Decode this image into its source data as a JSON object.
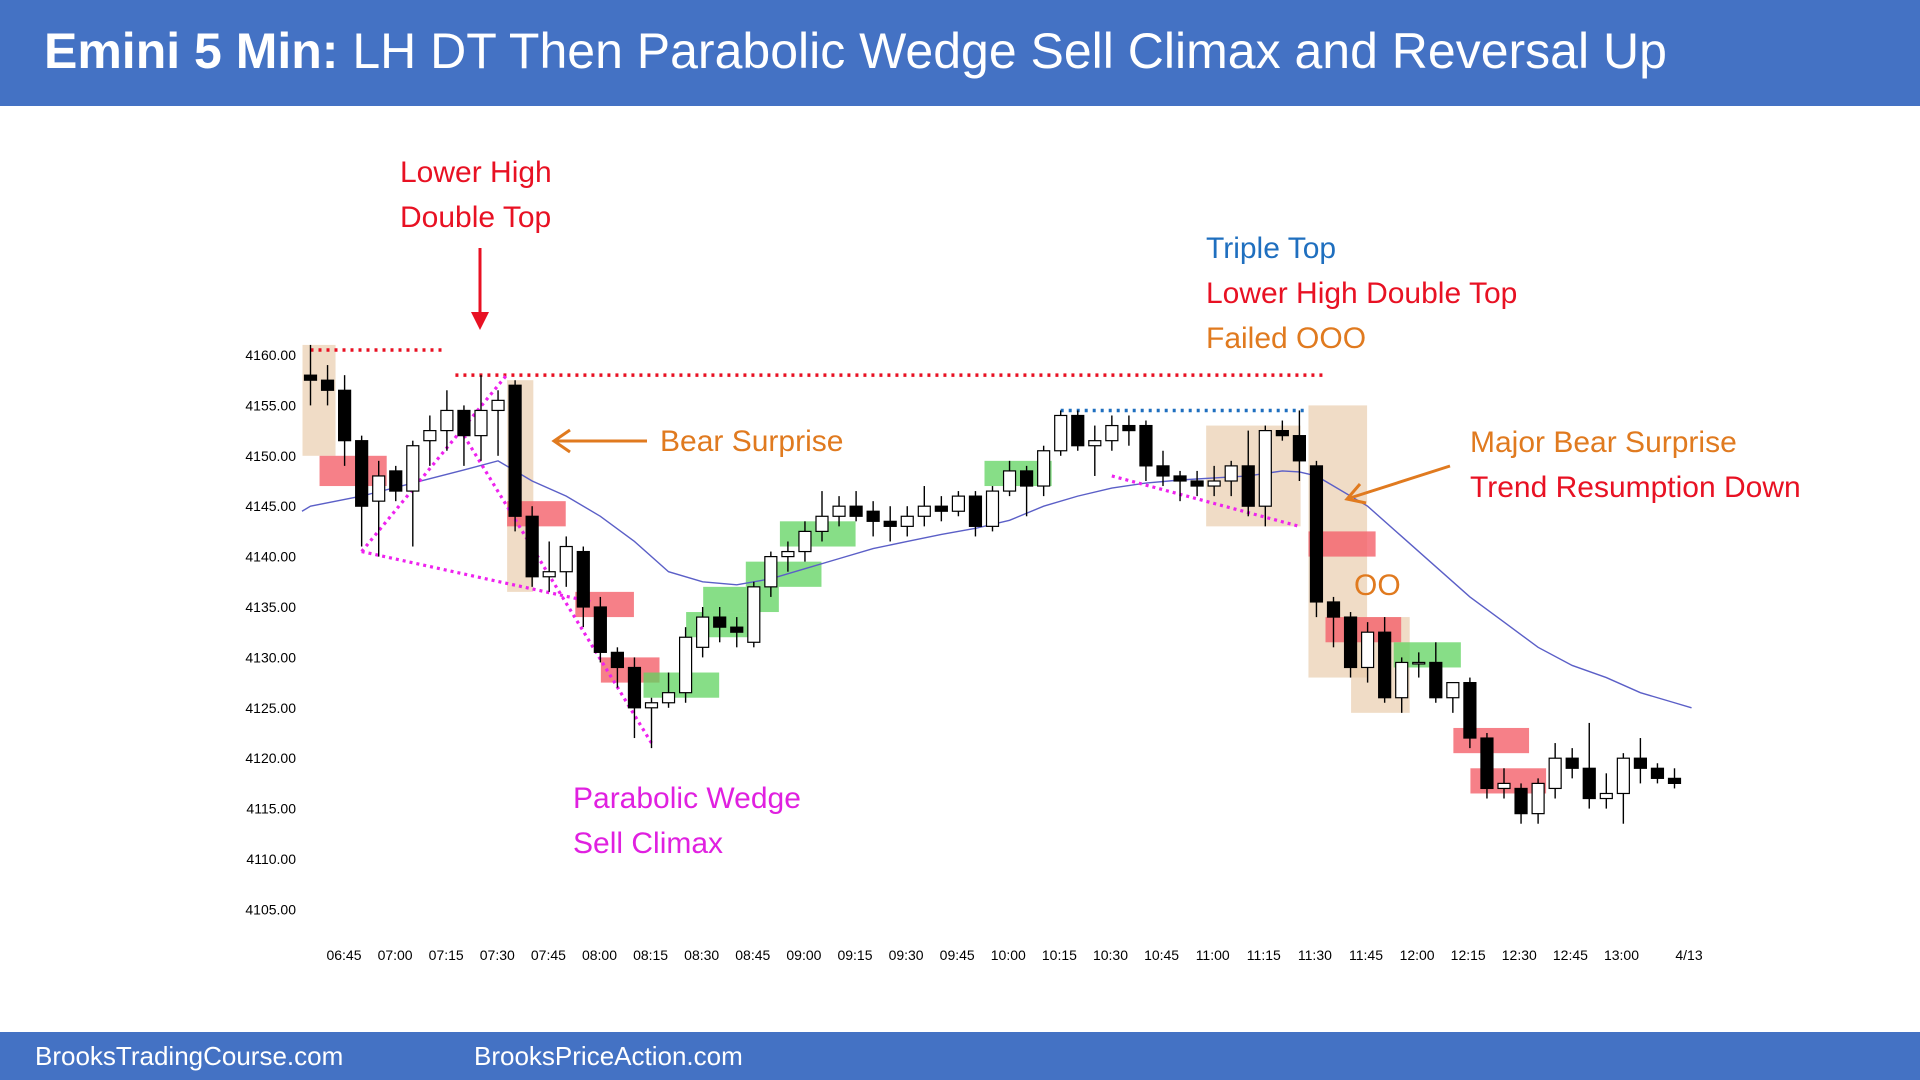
{
  "header": {
    "title_lead": "Emini 5 Min:",
    "title_rest": "LH DT Then Parabolic Wedge Sell Climax and Reversal Up"
  },
  "footer": {
    "left": "BrooksTradingCourse.com",
    "right": "BrooksPriceAction.com"
  },
  "colors": {
    "header_bg": "#4472c4",
    "ema": "#5b5fc7",
    "bull_bar_fill": "#ffffff",
    "bear_bar_fill": "#000000",
    "red_dotted": "#e81123",
    "blue_dotted": "#1f6fbf",
    "magenta": "#ee22ee",
    "orange": "#e07a1f",
    "red_text": "#e81123",
    "blue_text": "#1f6fbf",
    "magenta_text": "#e020e0",
    "highlight_tan": "#e8c9a8",
    "highlight_red": "#f4606a",
    "highlight_green": "#5fd35f"
  },
  "chart_data": {
    "type": "candlestick",
    "title": "Emini 5 Min",
    "ylim": [
      4103,
      4162
    ],
    "y_ticks": [
      "4160.00",
      "4155.00",
      "4150.00",
      "4145.00",
      "4140.00",
      "4135.00",
      "4130.00",
      "4125.00",
      "4120.00",
      "4115.00",
      "4110.00",
      "4105.00"
    ],
    "x_ticks": [
      "06:45",
      "07:00",
      "07:15",
      "07:30",
      "07:45",
      "08:00",
      "08:15",
      "08:30",
      "08:45",
      "09:00",
      "09:15",
      "09:30",
      "09:45",
      "10:00",
      "10:15",
      "10:30",
      "10:45",
      "11:00",
      "11:15",
      "11:30",
      "11:45",
      "12:00",
      "12:15",
      "12:30",
      "12:45",
      "13:00",
      "4/13"
    ],
    "grid": false,
    "bars": [
      {
        "i": 0,
        "o": 4158.0,
        "h": 4161.0,
        "l": 4155.0,
        "c": 4157.5
      },
      {
        "i": 1,
        "o": 4157.5,
        "h": 4159.0,
        "l": 4155.0,
        "c": 4156.5
      },
      {
        "i": 2,
        "o": 4156.5,
        "h": 4158.0,
        "l": 4149.0,
        "c": 4151.5
      },
      {
        "i": 3,
        "o": 4151.5,
        "h": 4152.0,
        "l": 4141.0,
        "c": 4145.0
      },
      {
        "i": 4,
        "o": 4145.5,
        "h": 4149.5,
        "l": 4140.0,
        "c": 4148.0
      },
      {
        "i": 5,
        "o": 4148.5,
        "h": 4149.0,
        "l": 4145.5,
        "c": 4146.5
      },
      {
        "i": 6,
        "o": 4146.5,
        "h": 4151.5,
        "l": 4141.0,
        "c": 4151.0
      },
      {
        "i": 7,
        "o": 4151.5,
        "h": 4154.0,
        "l": 4149.0,
        "c": 4152.5
      },
      {
        "i": 8,
        "o": 4152.5,
        "h": 4156.5,
        "l": 4150.5,
        "c": 4154.5
      },
      {
        "i": 9,
        "o": 4154.5,
        "h": 4155.0,
        "l": 4149.0,
        "c": 4152.0
      },
      {
        "i": 10,
        "o": 4152.0,
        "h": 4158.0,
        "l": 4149.5,
        "c": 4154.5
      },
      {
        "i": 11,
        "o": 4154.5,
        "h": 4156.5,
        "l": 4150.0,
        "c": 4155.5
      },
      {
        "i": 12,
        "o": 4157.0,
        "h": 4157.5,
        "l": 4142.5,
        "c": 4144.0
      },
      {
        "i": 13,
        "o": 4144.0,
        "h": 4145.0,
        "l": 4137.0,
        "c": 4138.0
      },
      {
        "i": 14,
        "o": 4138.0,
        "h": 4141.5,
        "l": 4136.5,
        "c": 4138.5
      },
      {
        "i": 15,
        "o": 4138.5,
        "h": 4142.0,
        "l": 4137.0,
        "c": 4141.0
      },
      {
        "i": 16,
        "o": 4140.5,
        "h": 4141.0,
        "l": 4133.0,
        "c": 4135.0
      },
      {
        "i": 17,
        "o": 4135.0,
        "h": 4136.0,
        "l": 4129.5,
        "c": 4130.5
      },
      {
        "i": 18,
        "o": 4130.5,
        "h": 4131.0,
        "l": 4127.0,
        "c": 4129.0
      },
      {
        "i": 19,
        "o": 4129.0,
        "h": 4130.0,
        "l": 4122.0,
        "c": 4125.0
      },
      {
        "i": 20,
        "o": 4125.0,
        "h": 4126.0,
        "l": 4121.0,
        "c": 4125.5
      },
      {
        "i": 21,
        "o": 4125.5,
        "h": 4128.5,
        "l": 4125.0,
        "c": 4126.5
      },
      {
        "i": 22,
        "o": 4126.5,
        "h": 4133.0,
        "l": 4125.5,
        "c": 4132.0
      },
      {
        "i": 23,
        "o": 4131.0,
        "h": 4135.0,
        "l": 4130.0,
        "c": 4134.0
      },
      {
        "i": 24,
        "o": 4134.0,
        "h": 4135.0,
        "l": 4131.5,
        "c": 4133.0
      },
      {
        "i": 25,
        "o": 4133.0,
        "h": 4134.0,
        "l": 4131.0,
        "c": 4132.5
      },
      {
        "i": 26,
        "o": 4131.5,
        "h": 4137.5,
        "l": 4131.0,
        "c": 4137.0
      },
      {
        "i": 27,
        "o": 4137.0,
        "h": 4140.5,
        "l": 4136.0,
        "c": 4140.0
      },
      {
        "i": 28,
        "o": 4140.0,
        "h": 4141.5,
        "l": 4138.5,
        "c": 4140.5
      },
      {
        "i": 29,
        "o": 4140.5,
        "h": 4143.5,
        "l": 4139.5,
        "c": 4142.5
      },
      {
        "i": 30,
        "o": 4142.5,
        "h": 4146.5,
        "l": 4141.5,
        "c": 4144.0
      },
      {
        "i": 31,
        "o": 4144.0,
        "h": 4146.0,
        "l": 4143.0,
        "c": 4145.0
      },
      {
        "i": 32,
        "o": 4145.0,
        "h": 4146.5,
        "l": 4143.5,
        "c": 4144.0
      },
      {
        "i": 33,
        "o": 4144.5,
        "h": 4145.5,
        "l": 4142.0,
        "c": 4143.5
      },
      {
        "i": 34,
        "o": 4143.5,
        "h": 4145.0,
        "l": 4141.5,
        "c": 4143.0
      },
      {
        "i": 35,
        "o": 4143.0,
        "h": 4145.0,
        "l": 4142.0,
        "c": 4144.0
      },
      {
        "i": 36,
        "o": 4144.0,
        "h": 4147.0,
        "l": 4143.0,
        "c": 4145.0
      },
      {
        "i": 37,
        "o": 4145.0,
        "h": 4146.0,
        "l": 4143.5,
        "c": 4144.5
      },
      {
        "i": 38,
        "o": 4144.5,
        "h": 4146.5,
        "l": 4144.0,
        "c": 4146.0
      },
      {
        "i": 39,
        "o": 4146.0,
        "h": 4146.5,
        "l": 4142.0,
        "c": 4143.0
      },
      {
        "i": 40,
        "o": 4143.0,
        "h": 4147.0,
        "l": 4142.5,
        "c": 4146.5
      },
      {
        "i": 41,
        "o": 4146.5,
        "h": 4149.5,
        "l": 4146.0,
        "c": 4148.5
      },
      {
        "i": 42,
        "o": 4148.5,
        "h": 4149.0,
        "l": 4144.0,
        "c": 4147.0
      },
      {
        "i": 43,
        "o": 4147.0,
        "h": 4151.0,
        "l": 4146.0,
        "c": 4150.5
      },
      {
        "i": 44,
        "o": 4150.5,
        "h": 4154.5,
        "l": 4150.0,
        "c": 4154.0
      },
      {
        "i": 45,
        "o": 4154.0,
        "h": 4154.5,
        "l": 4150.5,
        "c": 4151.0
      },
      {
        "i": 46,
        "o": 4151.0,
        "h": 4153.0,
        "l": 4148.0,
        "c": 4151.5
      },
      {
        "i": 47,
        "o": 4151.5,
        "h": 4154.0,
        "l": 4150.5,
        "c": 4153.0
      },
      {
        "i": 48,
        "o": 4153.0,
        "h": 4154.0,
        "l": 4151.0,
        "c": 4152.5
      },
      {
        "i": 49,
        "o": 4153.0,
        "h": 4153.5,
        "l": 4147.5,
        "c": 4149.0
      },
      {
        "i": 50,
        "o": 4149.0,
        "h": 4150.5,
        "l": 4147.0,
        "c": 4148.0
      },
      {
        "i": 51,
        "o": 4148.0,
        "h": 4148.5,
        "l": 4145.5,
        "c": 4147.5
      },
      {
        "i": 52,
        "o": 4147.5,
        "h": 4148.5,
        "l": 4146.0,
        "c": 4147.0
      },
      {
        "i": 53,
        "o": 4147.0,
        "h": 4149.0,
        "l": 4146.0,
        "c": 4147.5
      },
      {
        "i": 54,
        "o": 4147.5,
        "h": 4149.5,
        "l": 4146.0,
        "c": 4149.0
      },
      {
        "i": 55,
        "o": 4149.0,
        "h": 4152.5,
        "l": 4144.0,
        "c": 4145.0
      },
      {
        "i": 56,
        "o": 4145.0,
        "h": 4153.0,
        "l": 4143.0,
        "c": 4152.5
      },
      {
        "i": 57,
        "o": 4152.5,
        "h": 4153.5,
        "l": 4151.5,
        "c": 4152.0
      },
      {
        "i": 58,
        "o": 4152.0,
        "h": 4154.5,
        "l": 4147.5,
        "c": 4149.5
      },
      {
        "i": 59,
        "o": 4149.0,
        "h": 4149.5,
        "l": 4134.0,
        "c": 4135.5
      },
      {
        "i": 60,
        "o": 4135.5,
        "h": 4136.0,
        "l": 4131.0,
        "c": 4134.0
      },
      {
        "i": 61,
        "o": 4134.0,
        "h": 4134.5,
        "l": 4128.0,
        "c": 4129.0
      },
      {
        "i": 62,
        "o": 4129.0,
        "h": 4133.5,
        "l": 4127.5,
        "c": 4132.5
      },
      {
        "i": 63,
        "o": 4132.5,
        "h": 4134.0,
        "l": 4125.5,
        "c": 4126.0
      },
      {
        "i": 64,
        "o": 4126.0,
        "h": 4130.0,
        "l": 4124.5,
        "c": 4129.5
      },
      {
        "i": 65,
        "o": 4129.5,
        "h": 4130.5,
        "l": 4128.0,
        "c": 4129.5
      },
      {
        "i": 66,
        "o": 4129.5,
        "h": 4131.5,
        "l": 4125.5,
        "c": 4126.0
      },
      {
        "i": 67,
        "o": 4126.0,
        "h": 4127.5,
        "l": 4124.5,
        "c": 4127.5
      },
      {
        "i": 68,
        "o": 4127.5,
        "h": 4128.0,
        "l": 4121.0,
        "c": 4122.0
      },
      {
        "i": 69,
        "o": 4122.0,
        "h": 4122.5,
        "l": 4116.0,
        "c": 4117.0
      },
      {
        "i": 70,
        "o": 4117.0,
        "h": 4119.0,
        "l": 4116.0,
        "c": 4117.5
      },
      {
        "i": 71,
        "o": 4117.0,
        "h": 4117.5,
        "l": 4113.5,
        "c": 4114.5
      },
      {
        "i": 72,
        "o": 4114.5,
        "h": 4118.0,
        "l": 4113.5,
        "c": 4117.5
      },
      {
        "i": 73,
        "o": 4117.0,
        "h": 4121.5,
        "l": 4116.0,
        "c": 4120.0
      },
      {
        "i": 74,
        "o": 4120.0,
        "h": 4121.0,
        "l": 4118.0,
        "c": 4119.0
      },
      {
        "i": 75,
        "o": 4119.0,
        "h": 4123.5,
        "l": 4115.0,
        "c": 4116.0
      },
      {
        "i": 76,
        "o": 4116.0,
        "h": 4118.5,
        "l": 4115.0,
        "c": 4116.5
      },
      {
        "i": 77,
        "o": 4116.5,
        "h": 4120.5,
        "l": 4113.5,
        "c": 4120.0
      },
      {
        "i": 78,
        "o": 4120.0,
        "h": 4122.0,
        "l": 4117.5,
        "c": 4119.0
      },
      {
        "i": 79,
        "o": 4119.0,
        "h": 4119.5,
        "l": 4117.5,
        "c": 4118.0
      },
      {
        "i": 80,
        "o": 4118.0,
        "h": 4119.0,
        "l": 4117.0,
        "c": 4117.5
      }
    ],
    "ema20": [
      [
        -0.5,
        4144.5
      ],
      [
        0,
        4145
      ],
      [
        3,
        4146
      ],
      [
        6,
        4147.3
      ],
      [
        9,
        4148.6
      ],
      [
        11,
        4149.5
      ],
      [
        13,
        4147.5
      ],
      [
        15,
        4146
      ],
      [
        17,
        4144
      ],
      [
        19,
        4141.5
      ],
      [
        21,
        4138.5
      ],
      [
        23,
        4137.5
      ],
      [
        25,
        4137.2
      ],
      [
        27,
        4137.8
      ],
      [
        29,
        4138.8
      ],
      [
        31,
        4139.8
      ],
      [
        33,
        4140.8
      ],
      [
        35,
        4141.5
      ],
      [
        37,
        4142.2
      ],
      [
        39,
        4142.8
      ],
      [
        41,
        4143.6
      ],
      [
        43,
        4145
      ],
      [
        45,
        4146
      ],
      [
        47,
        4146.8
      ],
      [
        49,
        4147.3
      ],
      [
        51,
        4147.6
      ],
      [
        53,
        4147.8
      ],
      [
        55,
        4148
      ],
      [
        57,
        4148.5
      ],
      [
        58,
        4148.4
      ],
      [
        59,
        4148
      ],
      [
        60,
        4147
      ],
      [
        62,
        4145
      ],
      [
        64,
        4142
      ],
      [
        66,
        4139
      ],
      [
        68,
        4136
      ],
      [
        70,
        4133.5
      ],
      [
        72,
        4131
      ],
      [
        74,
        4129.2
      ],
      [
        76,
        4128
      ],
      [
        78,
        4126.5
      ],
      [
        80,
        4125.5
      ],
      [
        81,
        4125
      ]
    ],
    "levels": [
      {
        "style": "red-dotted",
        "y": 4160.5,
        "from_bar": 0,
        "to_bar": 7.9
      },
      {
        "style": "red-dotted",
        "y": 4158.0,
        "from_bar": 8.5,
        "to_bar": 59.6
      },
      {
        "style": "blue-dotted",
        "y": 4154.5,
        "from_bar": 44,
        "to_bar": 58.5
      }
    ],
    "wedge_lines": [
      [
        [
          3,
          4140.5
        ],
        [
          11.5,
          4158
        ]
      ],
      [
        [
          3,
          4140.5
        ],
        [
          16.5,
          4135.5
        ]
      ],
      [
        [
          9,
          4152
        ],
        [
          20,
          4121.5
        ]
      ],
      [
        [
          47,
          4148
        ],
        [
          58,
          4143
        ]
      ]
    ],
    "highlights": [
      {
        "color": "tan",
        "from_bar": 0,
        "to_bar": 1,
        "low": 4150,
        "high": 4161
      },
      {
        "color": "tan",
        "from_bar": 12,
        "to_bar": 12.6,
        "low": 4136.5,
        "high": 4157.5
      },
      {
        "color": "tan",
        "from_bar": 53,
        "to_bar": 57.6,
        "low": 4143,
        "high": 4153
      },
      {
        "color": "tan",
        "from_bar": 59,
        "to_bar": 61.5,
        "low": 4128,
        "high": 4155
      },
      {
        "color": "tan",
        "from_bar": 61.5,
        "to_bar": 64,
        "low": 4124.5,
        "high": 4134
      },
      {
        "color": "red",
        "from_bar": 1,
        "to_bar": 4,
        "low": 4147,
        "high": 4150
      },
      {
        "color": "red",
        "from_bar": 12,
        "to_bar": 14.5,
        "low": 4143,
        "high": 4145.5
      },
      {
        "color": "red",
        "from_bar": 16,
        "to_bar": 18.5,
        "low": 4134,
        "high": 4136.5
      },
      {
        "color": "red",
        "from_bar": 17.5,
        "to_bar": 20,
        "low": 4127.5,
        "high": 4130
      },
      {
        "color": "red",
        "from_bar": 59,
        "to_bar": 62,
        "low": 4140,
        "high": 4142.5
      },
      {
        "color": "red",
        "from_bar": 60,
        "to_bar": 63.5,
        "low": 4131.5,
        "high": 4134
      },
      {
        "color": "red",
        "from_bar": 67.5,
        "to_bar": 71,
        "low": 4120.5,
        "high": 4123
      },
      {
        "color": "red",
        "from_bar": 68.5,
        "to_bar": 72,
        "low": 4116.5,
        "high": 4119
      },
      {
        "color": "green",
        "from_bar": 20,
        "to_bar": 23.5,
        "low": 4126,
        "high": 4128.5
      },
      {
        "color": "green",
        "from_bar": 22.5,
        "to_bar": 25.5,
        "low": 4132,
        "high": 4134.5
      },
      {
        "color": "green",
        "from_bar": 23.5,
        "to_bar": 27,
        "low": 4134.5,
        "high": 4137
      },
      {
        "color": "green",
        "from_bar": 26,
        "to_bar": 29.5,
        "low": 4137,
        "high": 4139.5
      },
      {
        "color": "green",
        "from_bar": 28,
        "to_bar": 31.5,
        "low": 4141,
        "high": 4143.5
      },
      {
        "color": "green",
        "from_bar": 40,
        "to_bar": 43,
        "low": 4147,
        "high": 4149.5
      },
      {
        "color": "green",
        "from_bar": 64,
        "to_bar": 67,
        "low": 4129,
        "high": 4131.5
      }
    ],
    "annotations": {
      "lower_high_dt": [
        "Lower High",
        "Double Top"
      ],
      "bear_surprise": "Bear Surprise",
      "parabolic_wedge": [
        "Parabolic Wedge",
        "Sell Climax"
      ],
      "triple_top": "Triple Top",
      "lower_high_dt_2": "Lower High Double Top",
      "failed_ooo": "Failed OOO",
      "major_bear_surprise": "Major Bear Surprise",
      "trend_resumption": "Trend Resumption Down",
      "oo": "OO"
    }
  }
}
